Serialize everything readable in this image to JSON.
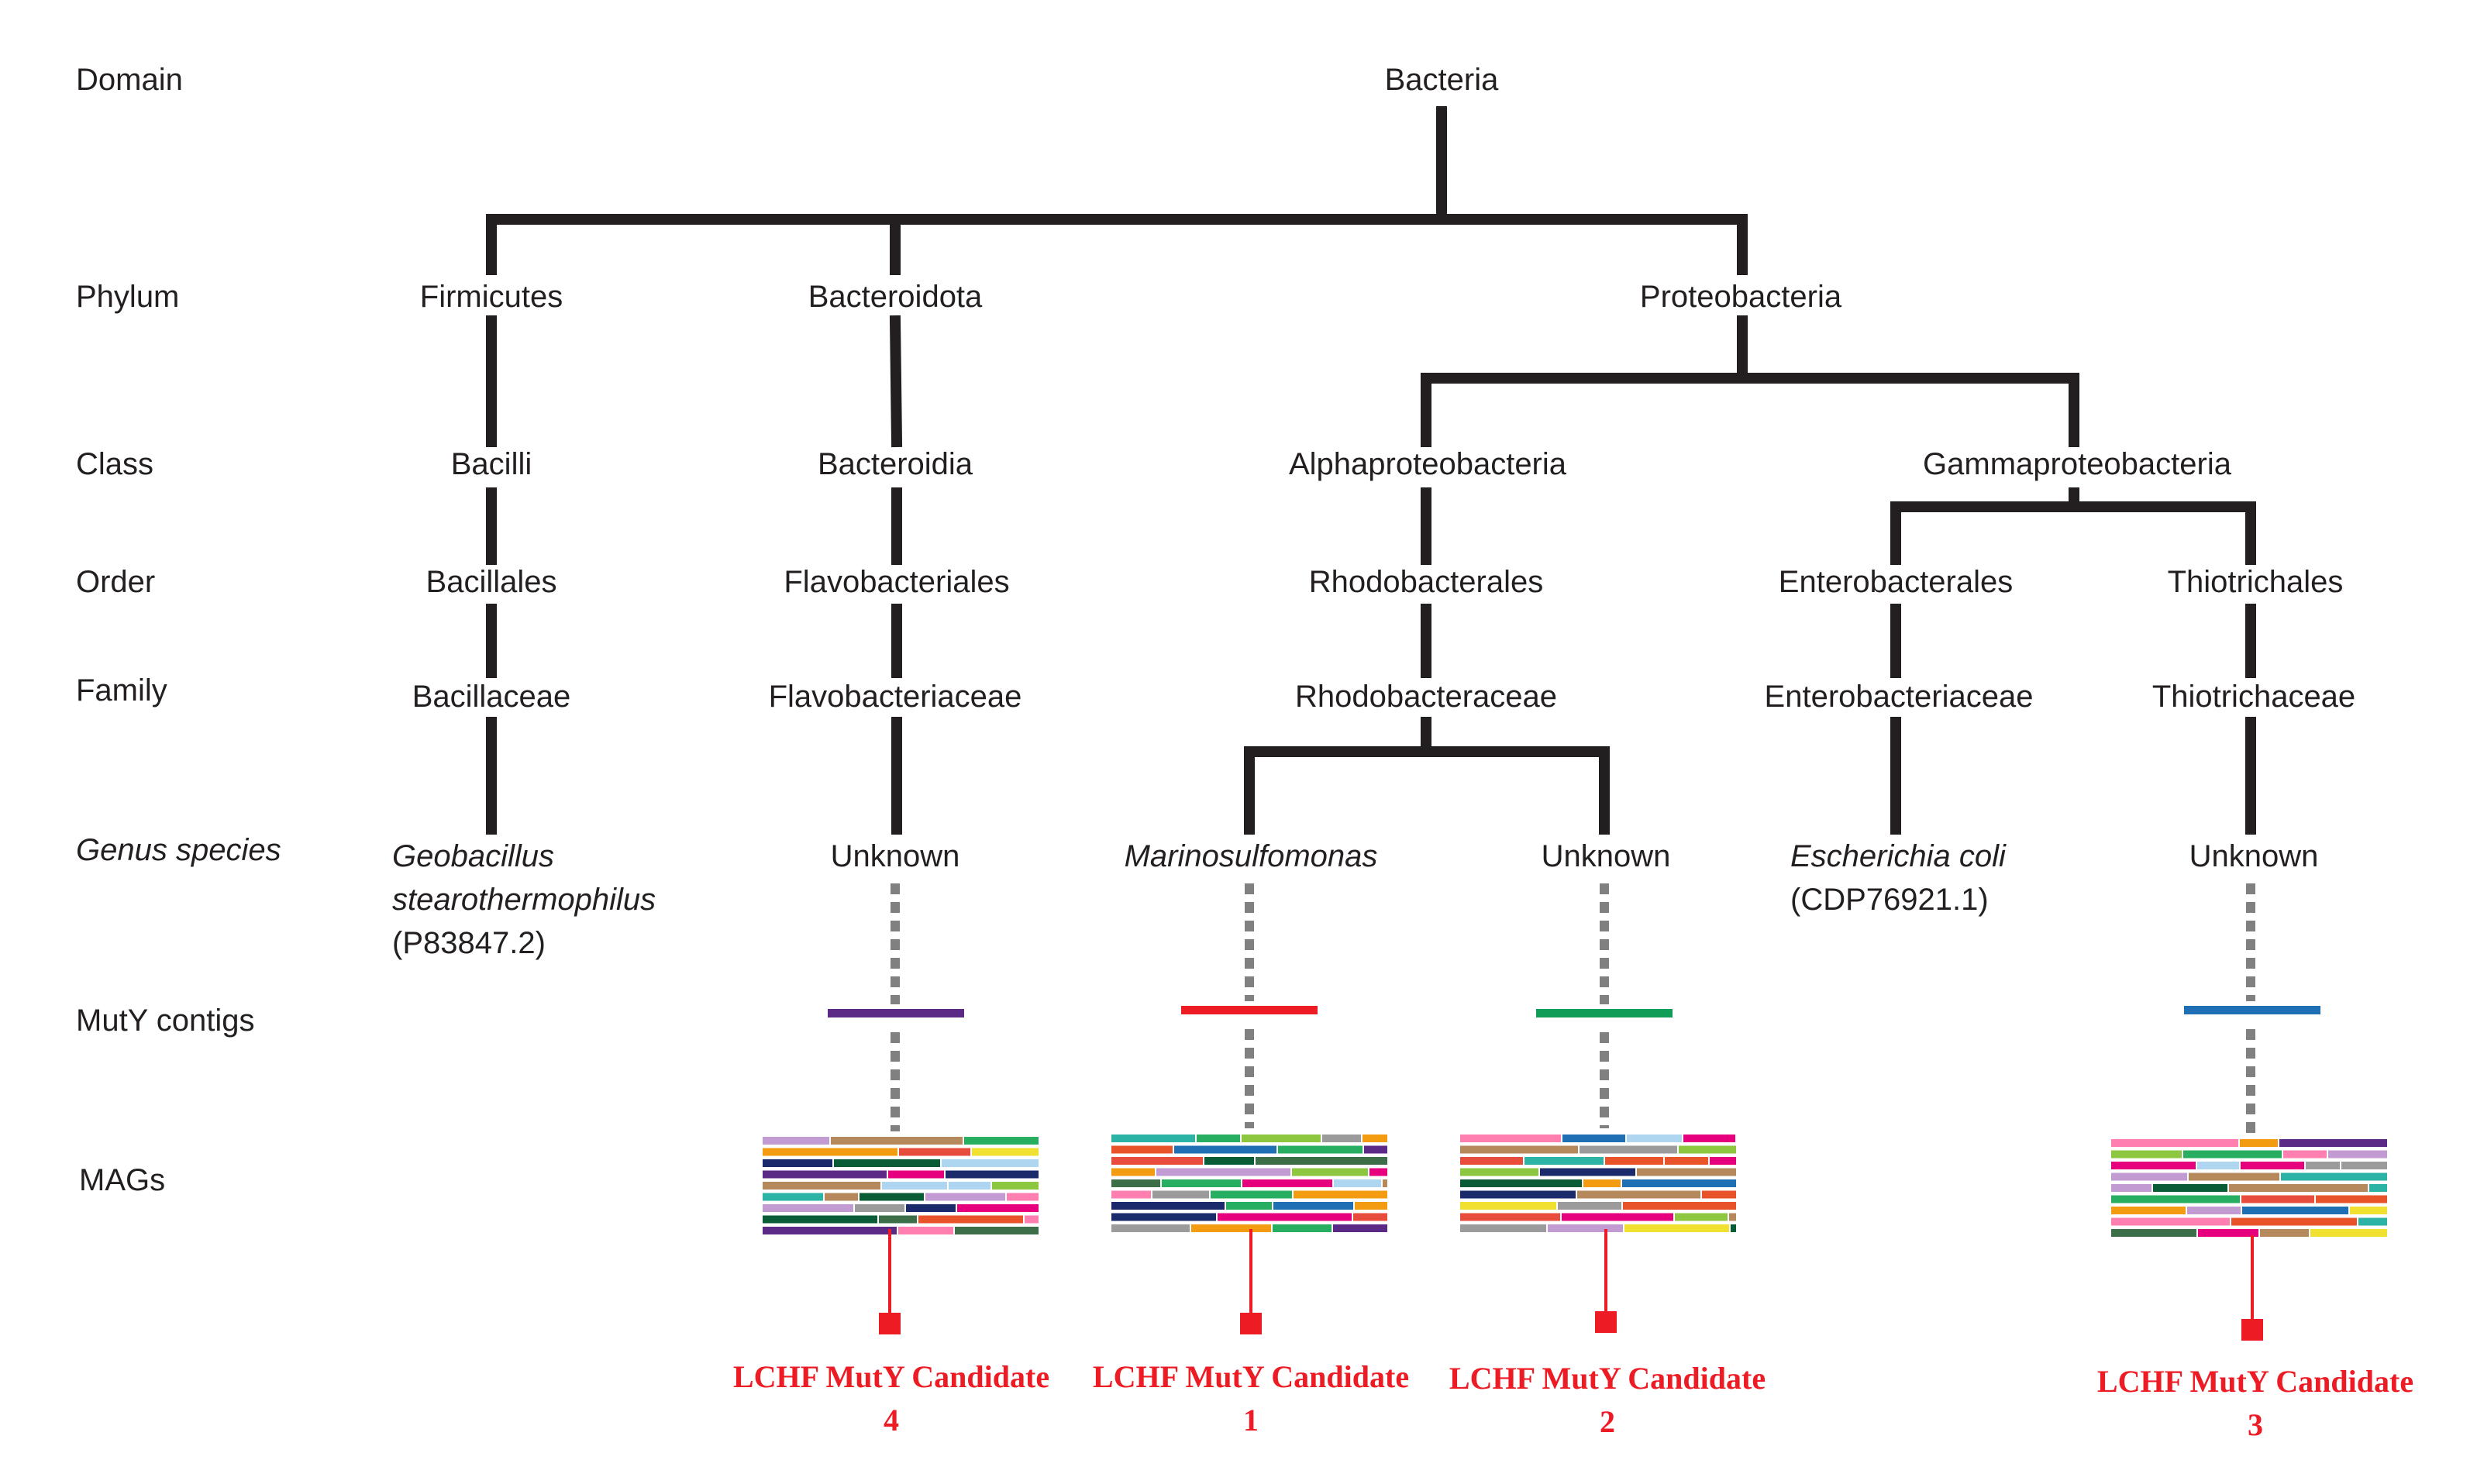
{
  "ranks": {
    "domain": "Domain",
    "phylum": "Phylum",
    "class": "Class",
    "order": "Order",
    "family": "Family",
    "genus_species": "Genus species",
    "muty_contigs": "MutY contigs",
    "mags": "MAGs"
  },
  "taxa": {
    "bacteria": "Bacteria",
    "firmicutes": "Firmicutes",
    "bacteroidota": "Bacteroidota",
    "proteobacteria": "Proteobacteria",
    "bacilli": "Bacilli",
    "bacteroidia": "Bacteroidia",
    "alphaproteobacteria": "Alphaproteobacteria",
    "gammaproteobacteria": "Gammaproteobacteria",
    "bacillales": "Bacillales",
    "flavobacteriales": "Flavobacteriales",
    "rhodobacterales": "Rhodobacterales",
    "enterobacterales": "Enterobacterales",
    "thiotrichales": "Thiotrichales",
    "bacillaceae": "Bacillaceae",
    "flavobacteriaceae": "Flavobacteriaceae",
    "rhodobacteraceae": "Rhodobacteraceae",
    "enterobacteriaceae": "Enterobacteriaceae",
    "thiotrichaceae": "Thiotrichaceae"
  },
  "species": {
    "geobacillus_line1": "Geobacillus",
    "geobacillus_line2": "stearothermophilus",
    "geobacillus_accession": "(P83847.2)",
    "unknown_flavo": "Unknown",
    "marinosulfomonas": "Marinosulfomonas",
    "unknown_rhodo": "Unknown",
    "ecoli": "Escherichia coli",
    "ecoli_accession": "(CDP76921.1)",
    "unknown_thio": "Unknown"
  },
  "candidates": [
    {
      "label": "LCHF MutY Candidate",
      "number": "4"
    },
    {
      "label": "LCHF MutY Candidate",
      "number": "1"
    },
    {
      "label": "LCHF MutY Candidate",
      "number": "2"
    },
    {
      "label": "LCHF MutY Candidate",
      "number": "3"
    }
  ],
  "colors": {
    "tree": "#231f20",
    "dashed": "#808080",
    "candidate": "#ed1c24",
    "contig_flavo": "#5b2a86",
    "contig_marino": "#ed1c24",
    "contig_rhodo_unknown": "#0f9d58",
    "contig_thio": "#1f6fb5"
  }
}
